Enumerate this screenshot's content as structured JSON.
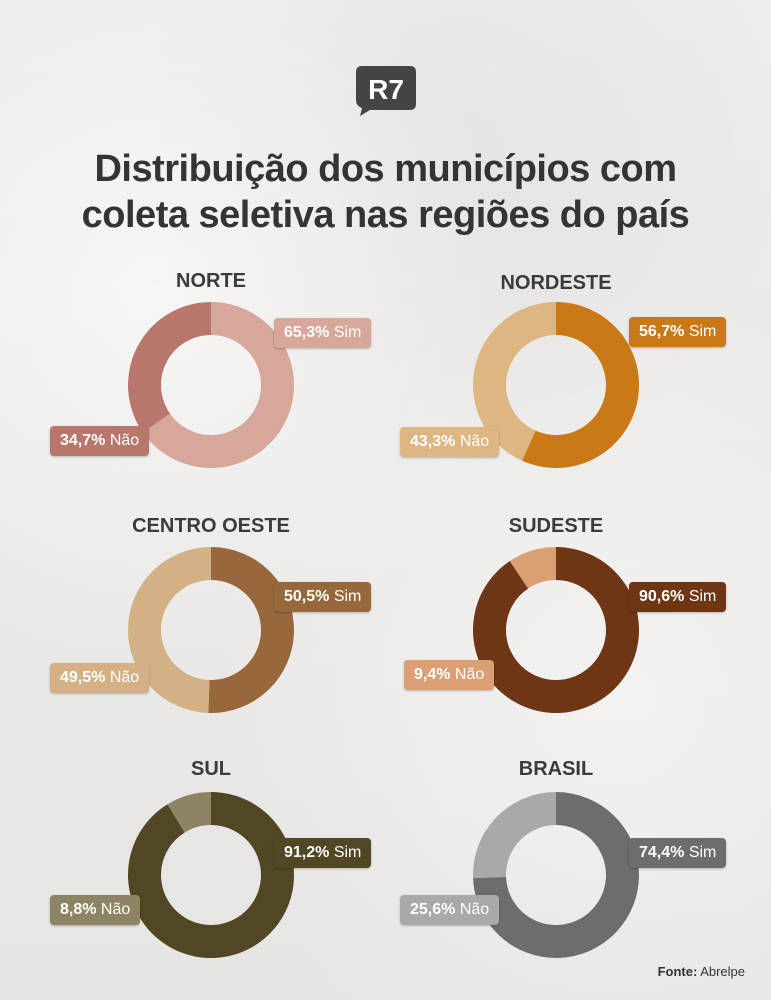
{
  "brand": {
    "logo_text": "R7",
    "logo_color": "#444444"
  },
  "header": {
    "title_line1": "Distribuição dos municípios com",
    "title_line2": "coleta seletiva nas regiões do país"
  },
  "source": {
    "label": "Fonte:",
    "value": "Abrelpe"
  },
  "chart_data": [
    {
      "type": "pie",
      "title": "NORTE",
      "slices": [
        {
          "label": "Sim",
          "display": "65,3%",
          "value": 65.3,
          "color": "#d8a79c"
        },
        {
          "label": "Não",
          "display": "34,7%",
          "value": 34.7,
          "color": "#b7776c"
        }
      ]
    },
    {
      "type": "pie",
      "title": "NORDESTE",
      "slices": [
        {
          "label": "Sim",
          "display": "56,7%",
          "value": 56.7,
          "color": "#c97916"
        },
        {
          "label": "Não",
          "display": "43,3%",
          "value": 43.3,
          "color": "#ddb682"
        }
      ]
    },
    {
      "type": "pie",
      "title": "CENTRO OESTE",
      "slices": [
        {
          "label": "Sim",
          "display": "50,5%",
          "value": 50.5,
          "color": "#96683c"
        },
        {
          "label": "Não",
          "display": "49,5%",
          "value": 49.5,
          "color": "#d4b184"
        }
      ]
    },
    {
      "type": "pie",
      "title": "SUDESTE",
      "slices": [
        {
          "label": "Sim",
          "display": "90,6%",
          "value": 90.6,
          "color": "#6e3614"
        },
        {
          "label": "Não",
          "display": "9,4%",
          "value": 9.4,
          "color": "#dc9f74"
        }
      ]
    },
    {
      "type": "pie",
      "title": "SUL",
      "slices": [
        {
          "label": "Sim",
          "display": "91,2%",
          "value": 91.2,
          "color": "#514724"
        },
        {
          "label": "Não",
          "display": "8,8%",
          "value": 8.8,
          "color": "#8c8463"
        }
      ]
    },
    {
      "type": "pie",
      "title": "BRASIL",
      "slices": [
        {
          "label": "Sim",
          "display": "74,4%",
          "value": 74.4,
          "color": "#6d6d6d"
        },
        {
          "label": "Não",
          "display": "25,6%",
          "value": 25.6,
          "color": "#a9a9a9"
        }
      ]
    }
  ]
}
